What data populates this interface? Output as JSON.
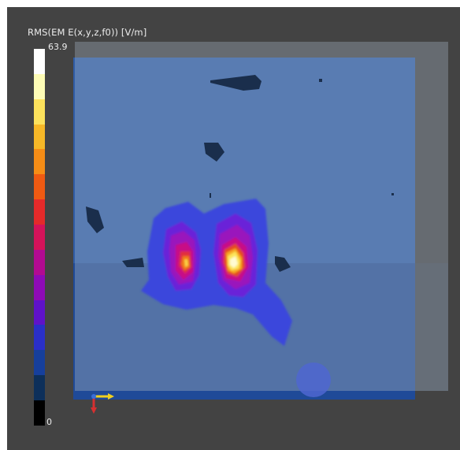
{
  "legend": {
    "title": "RMS(EM E(x,y,z,f0)) [V/m]",
    "max_label": "63.9",
    "min_label": "0",
    "colors": [
      "#ffffff",
      "#fefcb6",
      "#fce25c",
      "#f7b827",
      "#f68d16",
      "#ef5a12",
      "#e52a2a",
      "#d5135a",
      "#b20a91",
      "#8e0ab6",
      "#5f12c9",
      "#2a2fc8",
      "#163f9c",
      "#0d2f5a",
      "#000000"
    ]
  },
  "scene": {
    "background_color": "#434343",
    "plane_color": "#2e5ba4",
    "overlay_color": "#a4b3c6",
    "field_hotspots": [
      {
        "name": "left-hotspot",
        "peak_fraction": 0.8
      },
      {
        "name": "right-hotspot",
        "peak_fraction": 1.0
      }
    ],
    "axis_triad": {
      "x_color": "#f0d020",
      "y_color": "#3a6fd8",
      "z_color": "#d63030"
    }
  }
}
